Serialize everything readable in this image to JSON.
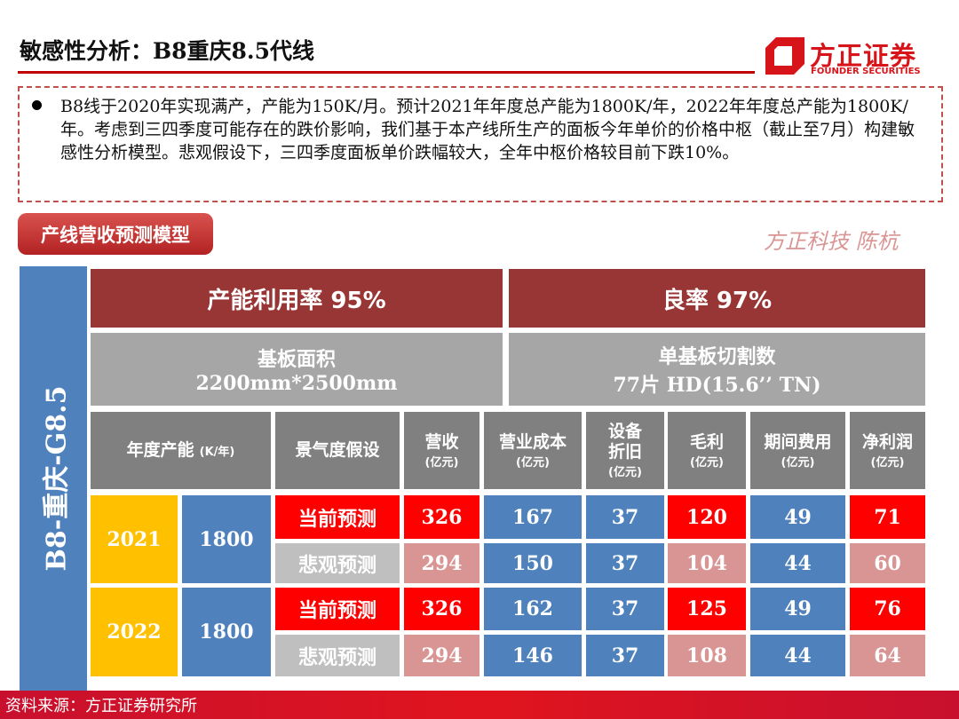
{
  "title": "敏感性分析：B8重庆8.5代线",
  "logo": {
    "cn": "方正证券",
    "en": "FOUNDER SECURITIES"
  },
  "bullet": "B8线于2020年实现满产，产能为150K/月。预计2021年年度总产能为1800K/年，2022年年度总产能为1800K/年。考虑到三四季度可能存在的跌价影响，我们基于本产线所生产的面板今年单价的价格中枢（截止至7月）构建敏感性分析模型。悲观假设下，三四季度面板单价跌幅较大，全年中枢价格较目前下跌10%。",
  "section_label": "产线营收预测模型",
  "table": {
    "side_label": "B8-重庆-G8.5",
    "utilization": "产能利用率 95%",
    "yield": "良率 97%",
    "substrate_label": "基板面积",
    "substrate_value": "2200mm*2500mm",
    "cuts_label": "单基板切割数",
    "cuts_value": "77片 HD(15.6’’ TN)",
    "headers": [
      {
        "main": "年度产能",
        "sub": "(K/年)"
      },
      {
        "main": "景气度假设",
        "sub": ""
      },
      {
        "main": "营收",
        "sub": "(亿元)"
      },
      {
        "main": "营业成本",
        "sub": "(亿元)"
      },
      {
        "main": "设备折旧",
        "sub": "(亿元)"
      },
      {
        "main": "毛利",
        "sub": "(亿元)"
      },
      {
        "main": "期间费用",
        "sub": "(亿元)"
      },
      {
        "main": "净利润",
        "sub": "(亿元)"
      }
    ],
    "years": [
      {
        "year": "2021",
        "capacity": "1800",
        "rows": [
          {
            "scenario": "当前预测",
            "values": [
              "326",
              "167",
              "37",
              "120",
              "49",
              "71"
            ]
          },
          {
            "scenario": "悲观预测",
            "values": [
              "294",
              "150",
              "37",
              "104",
              "44",
              "60"
            ]
          }
        ]
      },
      {
        "year": "2022",
        "capacity": "1800",
        "rows": [
          {
            "scenario": "当前预测",
            "values": [
              "326",
              "162",
              "37",
              "125",
              "49",
              "76"
            ]
          },
          {
            "scenario": "悲观预测",
            "values": [
              "294",
              "146",
              "37",
              "108",
              "44",
              "64"
            ]
          }
        ]
      }
    ]
  },
  "watermark": "方正科技 陈杭",
  "footer": "资料来源：方正证券研究所",
  "colors": {
    "accent": "#c00000",
    "maroon": "#983535",
    "blue": "#4f81bd",
    "yellow": "#ffc000",
    "red": "#ff0000",
    "pink": "#d99594"
  }
}
